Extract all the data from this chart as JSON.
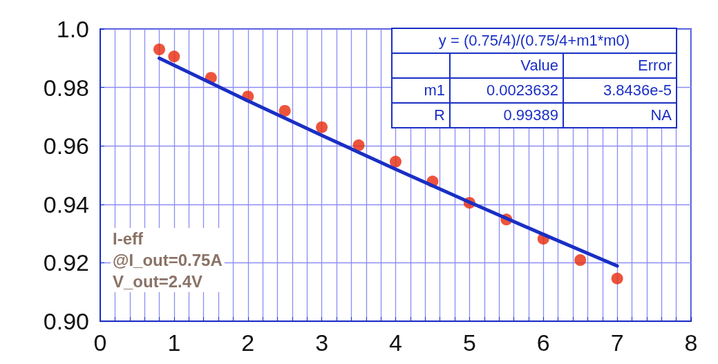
{
  "chart_data": {
    "type": "scatter",
    "xlim": [
      0,
      8
    ],
    "ylim": [
      0.9,
      1.0
    ],
    "xticks": [
      0,
      {
        "value": 0.2,
        "label": null
      },
      {
        "value": 0.4,
        "label": null
      },
      {
        "value": 0.6,
        "label": null
      },
      {
        "value": 0.8,
        "label": null
      },
      1,
      {
        "value": 1.2,
        "label": null
      },
      {
        "value": 1.4,
        "label": null
      },
      {
        "value": 1.6,
        "label": null
      },
      {
        "value": 1.8,
        "label": null
      },
      2,
      {
        "value": 2.2,
        "label": null
      },
      {
        "value": 2.4,
        "label": null
      },
      {
        "value": 2.6,
        "label": null
      },
      {
        "value": 2.8,
        "label": null
      },
      3,
      {
        "value": 3.2,
        "label": null
      },
      {
        "value": 3.4,
        "label": null
      },
      {
        "value": 3.6,
        "label": null
      },
      {
        "value": 3.8,
        "label": null
      },
      4,
      {
        "value": 4.2,
        "label": null
      },
      {
        "value": 4.4,
        "label": null
      },
      {
        "value": 4.6,
        "label": null
      },
      {
        "value": 4.8,
        "label": null
      },
      5,
      {
        "value": 5.2,
        "label": null
      },
      {
        "value": 5.4,
        "label": null
      },
      {
        "value": 5.6,
        "label": null
      },
      {
        "value": 5.8,
        "label": null
      },
      6,
      {
        "value": 6.2,
        "label": null
      },
      {
        "value": 6.4,
        "label": null
      },
      {
        "value": 6.6,
        "label": null
      },
      {
        "value": 6.8,
        "label": null
      },
      7,
      {
        "value": 7.2,
        "label": null
      },
      {
        "value": 7.4,
        "label": null
      },
      {
        "value": 7.6,
        "label": null
      },
      {
        "value": 7.8,
        "label": null
      },
      8
    ],
    "yticks": [
      {
        "value": 0.9,
        "label": "0.90"
      },
      0.92,
      0.94,
      0.96,
      0.98,
      {
        "value": 1.0,
        "label": "1.0"
      }
    ],
    "grid": true,
    "marker": "circle",
    "series": [
      {
        "color": "#e8290b",
        "x": [
          0.8,
          1,
          1.5,
          2,
          2.5,
          3,
          3.5,
          4,
          4.5,
          5,
          5.5,
          6,
          6.5,
          7
        ],
        "values": [
          0.993,
          0.9906,
          0.9833,
          0.9769,
          0.972,
          0.9664,
          0.9602,
          0.9546,
          0.9478,
          0.9405,
          0.9348,
          0.9282,
          0.9209,
          0.9146
        ]
      },
      {
        "type": "line",
        "color": "#1a2fc4",
        "marker": "none",
        "line_style": "solid",
        "x": [
          0.8,
          1,
          2,
          3,
          4,
          5,
          6,
          7
        ],
        "values": [
          0.99,
          0.9876,
          0.9754,
          0.9636,
          0.952,
          0.9407,
          0.9297,
          0.9189
        ]
      }
    ],
    "annotations": [
      "y = (0.75/4)/(0.75/4+m1*m0)",
      "Value",
      "Error",
      "m1",
      "0.0023632",
      "3.8436e-5",
      "R",
      "0.99389",
      "NA",
      "I-eff\n@I_out=0.75A\nV_out=2.4V"
    ]
  }
}
